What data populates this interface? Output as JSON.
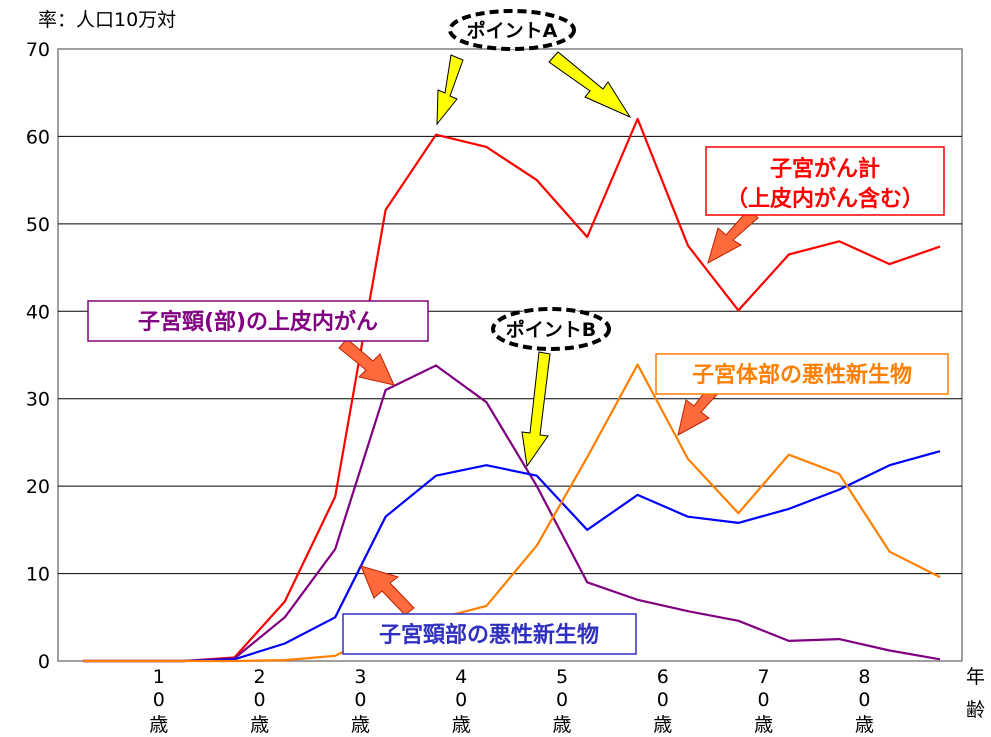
{
  "chart_data": {
    "type": "line",
    "y_unit_label": "率：人口10万対",
    "x_unit_label": [
      "年",
      "齢"
    ],
    "ylim": [
      0,
      70
    ],
    "yticks": [
      0,
      10,
      20,
      30,
      40,
      50,
      60,
      70
    ],
    "grid": true,
    "x_axis_labels": [
      {
        "digits": [
          "1",
          "0"
        ],
        "suffix": "歳"
      },
      {
        "digits": [
          "2",
          "0"
        ],
        "suffix": "歳"
      },
      {
        "digits": [
          "3",
          "0"
        ],
        "suffix": "歳"
      },
      {
        "digits": [
          "4",
          "0"
        ],
        "suffix": "歳"
      },
      {
        "digits": [
          "5",
          "0"
        ],
        "suffix": "歳"
      },
      {
        "digits": [
          "6",
          "0"
        ],
        "suffix": "歳"
      },
      {
        "digits": [
          "7",
          "0"
        ],
        "suffix": "歳"
      },
      {
        "digits": [
          "8",
          "0"
        ],
        "suffix": "歳"
      }
    ],
    "x": [
      0.5,
      1,
      1.5,
      2,
      2.5,
      3,
      3.5,
      4,
      4.5,
      5,
      5.5,
      6,
      6.5,
      7,
      7.5,
      8,
      8.5,
      9
    ],
    "series": [
      {
        "name": "子宮がん計（上皮内がん含む）",
        "color": "#ff0000",
        "values": [
          0,
          0,
          0,
          0.4,
          6.8,
          18.8,
          51.6,
          60.2,
          58.8,
          55.0,
          48.5,
          62.0,
          47.5,
          40.1,
          46.5,
          48.0,
          45.4,
          47.4
        ]
      },
      {
        "name": "子宮頸（部）の上皮内がん",
        "color": "#800080",
        "values": [
          0,
          0,
          0,
          0.3,
          5.0,
          12.8,
          31.0,
          33.8,
          29.6,
          20.0,
          9.0,
          7.0,
          5.7,
          4.6,
          2.3,
          2.5,
          1.2,
          0.2
        ]
      },
      {
        "name": "子宮頸部の悪性新生物",
        "color": "#0000ff",
        "values": [
          0,
          0,
          0,
          0.2,
          2.0,
          5.0,
          16.5,
          21.2,
          22.4,
          21.2,
          15.0,
          19.0,
          16.5,
          15.8,
          17.4,
          19.6,
          22.4,
          24.0
        ]
      },
      {
        "name": "子宮体部の悪性新生物",
        "color": "#ff7f00",
        "values": [
          0,
          0,
          0,
          0,
          0.1,
          0.6,
          3.5,
          4.8,
          6.3,
          13.2,
          23.3,
          33.9,
          23.1,
          16.9,
          23.6,
          21.4,
          12.5,
          9.6
        ]
      }
    ],
    "annotations": {
      "point_a": "ポイントA",
      "point_b": "ポイントB",
      "total_line1": "子宮がん計",
      "total_line2": "（上皮内がん含む）",
      "cis": "子宮頸(部)の上皮内がん",
      "cervical": "子宮頸部の悪性新生物",
      "corpus": "子宮体部の悪性新生物"
    },
    "colors": {
      "total": "#ff0000",
      "cis": "#800080",
      "cervical": "#0000ff",
      "corpus": "#ff7f00",
      "callout_arrow": "#ff6a3c",
      "point_arrow": "#ffff00"
    }
  }
}
